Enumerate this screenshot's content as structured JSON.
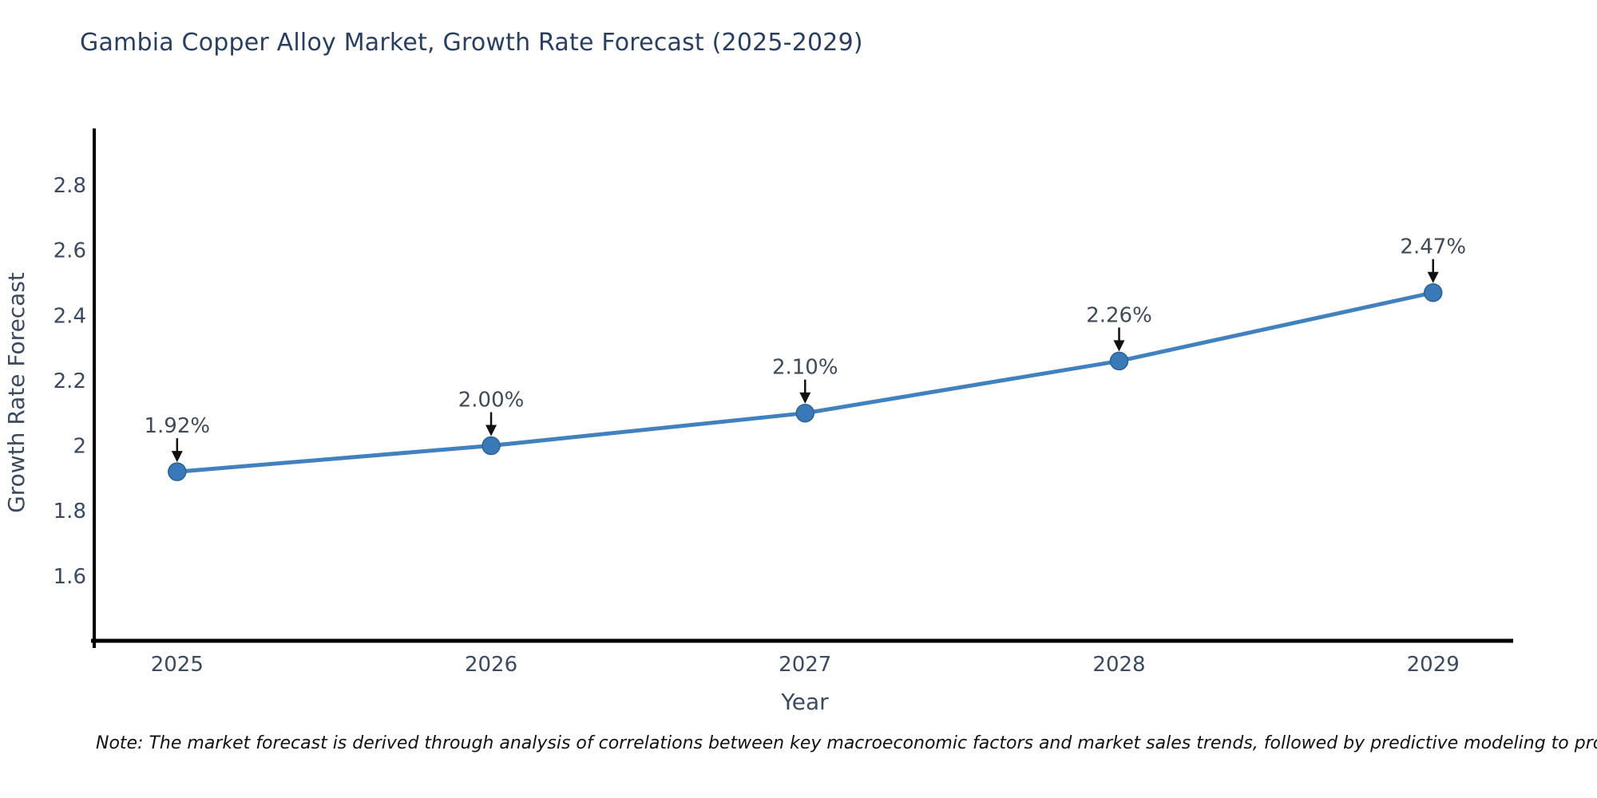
{
  "page": {
    "title": "Gambia Copper Alloy Market, Growth Rate Forecast (2025-2029)",
    "note": "Note: The market forecast is derived through analysis of correlations between key macroeconomic factors and market sales trends, followed by predictive modeling to project future sales"
  },
  "chart_data": {
    "type": "line",
    "title": "Gambia Copper Alloy Market, Growth Rate Forecast (2025-2029)",
    "xlabel": "Year",
    "ylabel": "Growth Rate Forecast",
    "x": [
      2025,
      2026,
      2027,
      2028,
      2029
    ],
    "x_tick_labels": [
      "2025",
      "2026",
      "2027",
      "2028",
      "2029"
    ],
    "series": [
      {
        "name": "Growth Rate Forecast",
        "values": [
          1.92,
          2.0,
          2.1,
          2.26,
          2.47
        ]
      }
    ],
    "point_labels": [
      "1.92%",
      "2.00%",
      "2.10%",
      "2.26%",
      "2.47%"
    ],
    "y_ticks": [
      1.6,
      1.8,
      2.0,
      2.2,
      2.4,
      2.6,
      2.8
    ],
    "y_tick_labels": [
      "1.6",
      "1.8",
      "2",
      "2.2",
      "2.4",
      "2.6",
      "2.8"
    ],
    "xlim": [
      2024.736,
      2029.255
    ],
    "ylim": [
      1.401,
      2.974
    ],
    "grid": false,
    "legend_position": "none",
    "annotations_have_arrows": true,
    "colors": {
      "line": "#4181bd",
      "marker": "#3a79b8",
      "marker_edge": "#2e6193",
      "axis": "#000000",
      "title_text": "#2a3f5f",
      "tick_text": "#3b4a5f",
      "axis_label_text": "#3b4a5f",
      "annotation_text": "#3f4a5a",
      "arrow": "#111111",
      "note_text": "#111111",
      "background": "#ffffff"
    }
  }
}
